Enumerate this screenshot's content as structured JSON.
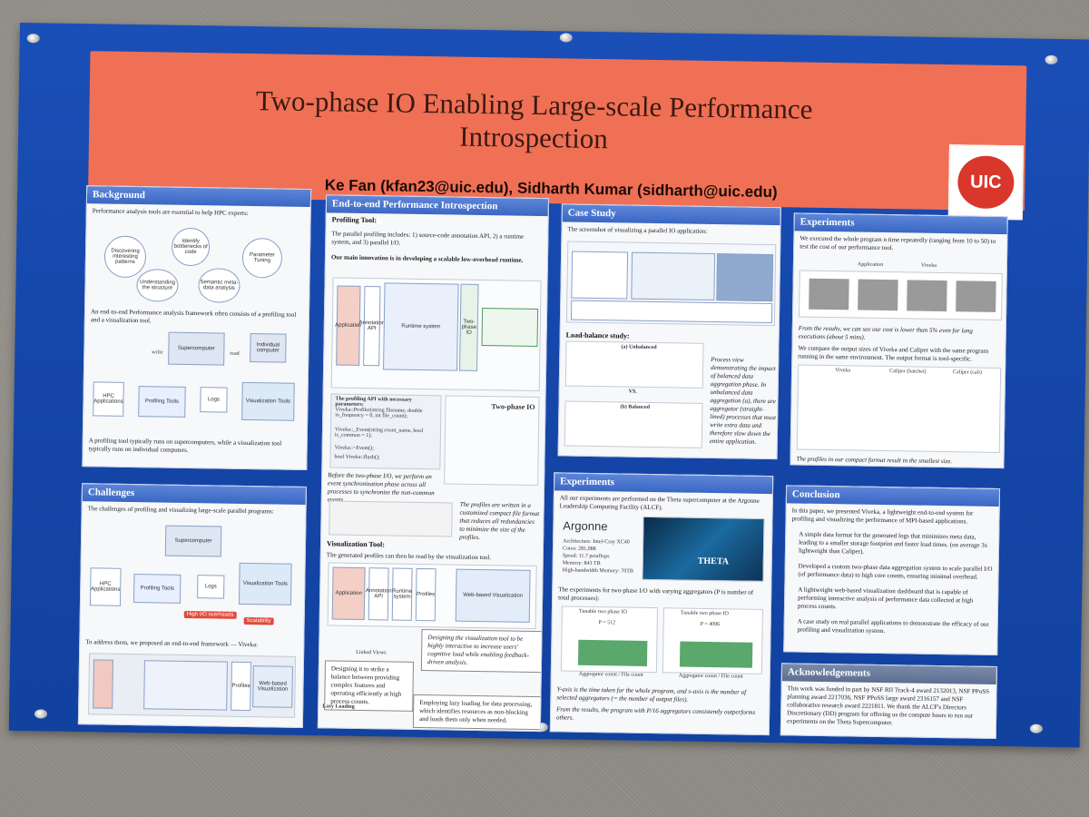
{
  "poster": {
    "title_line1": "Two-phase IO Enabling Large-scale Performance",
    "title_line2": "Introspection",
    "authors": "Ke Fan (kfan23@uic.edu),  Sidharth Kumar (sidharth@uic.edu)",
    "logo_text": "UIC"
  },
  "background": {
    "heading": "Background",
    "intro": "Performance analysis tools are essential to help HPC experts:",
    "bubbles": [
      "Discovering interesting patterns",
      "Identify bottlenecks of code",
      "Parameter Tuning",
      "Understanding the structure",
      "Semantic meta-data analysis"
    ],
    "framework": "An end-to-end Performance analysis framework often consists of a profiling tool and a visualization tool.",
    "labels": [
      "write",
      "read",
      "Supercomputer",
      "Individual computer",
      "HPC Applications",
      "Profiling Tools",
      "Logs",
      "Visualization Tools"
    ],
    "footer": "A profiling tool typically runs on supercomputers, while a visualization tool typically runs on individual computers."
  },
  "challenges": {
    "heading": "Challenges",
    "intro": "The challenges of profiling and visualizing large-scale parallel programs:",
    "badges": [
      "High I/O overheads",
      "Scalability"
    ],
    "footer": "To address them, we proposed an end-to-end framework — Viveka:",
    "mini_labels": [
      "Web-based Visualization",
      "Profiles"
    ]
  },
  "framework": {
    "heading": "End-to-end Performance Introspection Framework",
    "profiling_heading": "Profiling Tool:",
    "profiling_text": "The parallel profiling includes: 1) source-code annotation API, 2) a runtime system, and 3) parallel I/O.",
    "innovation": "Our main innovation is in developing a scalable low-overhead runtime.",
    "api_title": "The profiling API with necessary parameters:",
    "api_items": [
      "Viveka::Profiler(string filename, double io_frequency = 0, int file_count);",
      "Viveka::_Event(string event_name, bool is_common = 1);",
      "Viveka::~Event();",
      "bool Viveka::flush();"
    ],
    "two_phase_label": "Two-phase IO",
    "before_text": "Before the two-phase I/O, we perform an event synchronization phase across all processes to synchronize the non-common events.",
    "profiles_note": "The profiles are written in a customized compact file format that reduces all redundancies to minimize the size of the profiles.",
    "vis_heading": "Visualization Tool:",
    "vis_text": "The generated profiles can then be read by the visualization tool.",
    "vis_labels": [
      "Application",
      "Annotation API",
      "Runtime system",
      "Profiles",
      "Web-based Visualization"
    ],
    "views_label": "Linked Views",
    "design_note": "Designing the visualization tool to be highly interactive to increase users' cognitive load while enabling feedback-driven analysis.",
    "balance_note": "Designing it to strike a balance between providing complex features and operating efficiently at high process counts.",
    "lazy_label": "Lazy Loading",
    "lazy_note": "Employing lazy loading for data processing, which identifies resources as non-blocking and loads them only when needed."
  },
  "case_study": {
    "heading": "Case Study",
    "intro": "The screenshot of visualizing a parallel IO application:",
    "load_balance": "Load-balance study:",
    "unbalanced": "(a) Unbalanced",
    "balanced": "(b) Balanced",
    "vs": "VS.",
    "note": "Process view demonstrating the impact of balanced data aggregation phase. In unbalanced data aggregation (a), there are aggregator (straight-lined) processes that must write extra data and therefore slow down the entire application."
  },
  "experiments_top": {
    "heading": "Experiments",
    "intro": "We executed the whole program n time repeatedly (ranging from 10 to 50) to test the cost of our performance tool.",
    "legend": [
      "Application",
      "Viveka"
    ],
    "result": "From the results, we can see our cost is lower than 5% even for long executions (about 5 mins).",
    "compare": "We compare the output sizes of Viveka and Caliper with the same program running in the same environment. The output format is tool-specific.",
    "legend2": [
      "Viveka",
      "Caliper (hatchet)",
      "Caliper (cali)"
    ],
    "footer": "The profiles in our compact format result in the smallest size."
  },
  "experiments_bottom": {
    "heading": "Experiments",
    "intro": "All our experiments are performed on the Theta supercomputer at the Argonne Leadership Computing Facility (ALCF).",
    "argonne": "Argonne",
    "specs": [
      "Architecture: Intel-Cray XC40",
      "Cores: 281,088",
      "Speed: 11.7 petaflops",
      "Memory: 843 TB",
      "High-bandwidth Memory: 70TB"
    ],
    "theta": "THETA",
    "two_phase": "The experiments for two-phase I/O with varying aggregators (P is number of total processes):",
    "legend": "Tunable two phase IO",
    "p_values": [
      "P = 512",
      "P = 4096"
    ],
    "xaxis": "Aggregator count / File count",
    "caption": "Y-axis is the time taken for the whole program, and x-axis is the number of selected aggregators (= the number of output files).",
    "caption2": "From the results, the program with P/16 aggregators consistently outperforms others."
  },
  "conclusion": {
    "heading": "Conclusion",
    "intro": "In this paper, we presented Viveka, a lightweight end-to-end system for profiling and visualizing the performance of MPI-based applications.",
    "bullets": [
      "A simple data format for the generated logs that minimizes meta data, leading to a smaller storage footprint and faster load times. (on average 3x lightweight than Caliper).",
      "Developed a custom two-phase data aggregation system to scale parallel I/O (of performance data) to high core counts, ensuring minimal overhead.",
      "A lightweight web-based visualization dashboard that is capable of performing interactive analysis of performance data collected at high process counts.",
      "A case study on real parallel applications to demonstrate the efficacy of our profiling and visualization system."
    ]
  },
  "acknowledgements": {
    "heading": "Acknowledgements",
    "text": "This work was funded in part by NSF RII Track-4 award 2132013, NSF PPoSS planning award 2217036, NSF PPoSS large award 2316157 and NSF collaborative research award 2221811. We thank the ALCF's Directors Discretionary (DD) program for offering us the compute hours to run our experiments on the Theta Supercomputer."
  },
  "colors": {
    "banner": "#f07055",
    "poster_blue": "#1546a8",
    "bar_green": "#5aa86b",
    "badge_red": "#e14b3b"
  }
}
